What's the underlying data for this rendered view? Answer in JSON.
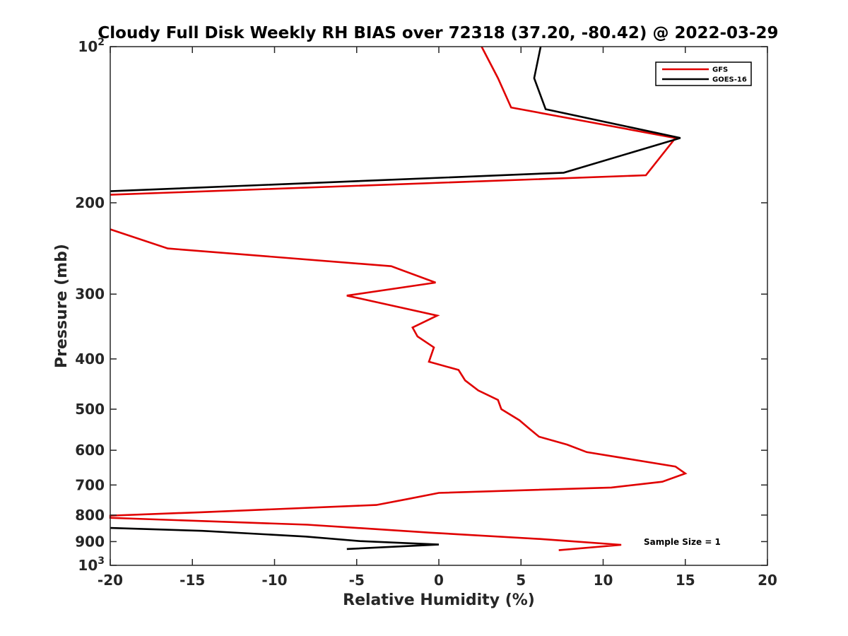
{
  "chart_data": {
    "type": "line",
    "title": "Cloudy Full Disk Weekly RH BIAS over 72318 (37.20, -80.42) @ 2022-03-29",
    "xlabel": "Relative Humidity (%)",
    "ylabel": "Pressure (mb)",
    "xlim": [
      -20,
      20
    ],
    "ylim": [
      100,
      1000
    ],
    "yscale": "log",
    "yreversed": true,
    "xticks": [
      -20,
      -15,
      -10,
      -5,
      0,
      5,
      10,
      15,
      20
    ],
    "xtick_labels": [
      "-20",
      "-15",
      "-10",
      "-5",
      "0",
      "5",
      "10",
      "15",
      "20"
    ],
    "yticks": [
      {
        "value": 100,
        "base": "10",
        "exp": "2"
      },
      {
        "value": 200,
        "base": "200",
        "exp": ""
      },
      {
        "value": 300,
        "base": "300",
        "exp": ""
      },
      {
        "value": 400,
        "base": "400",
        "exp": ""
      },
      {
        "value": 500,
        "base": "500",
        "exp": ""
      },
      {
        "value": 600,
        "base": "600",
        "exp": ""
      },
      {
        "value": 700,
        "base": "700",
        "exp": ""
      },
      {
        "value": 800,
        "base": "800",
        "exp": ""
      },
      {
        "value": 900,
        "base": "900",
        "exp": ""
      },
      {
        "value": 1000,
        "base": "10",
        "exp": "3"
      }
    ],
    "legend_position": "top-right",
    "annotation": "Sample Size = 1",
    "series": [
      {
        "name": "GFS",
        "color": "#e00000",
        "segments": [
          [
            [
              2.6,
              100
            ],
            [
              3.6,
              115
            ],
            [
              4.4,
              131
            ],
            [
              14.4,
              150
            ],
            [
              12.6,
              177
            ],
            [
              -20,
              193
            ]
          ],
          [
            [
              -20,
              225
            ],
            [
              -16.5,
              245
            ],
            [
              -2.9,
              265
            ],
            [
              -0.2,
              285
            ],
            [
              -5.6,
              302
            ],
            [
              -0.1,
              330
            ],
            [
              -1.6,
              348
            ],
            [
              -1.3,
              362
            ],
            [
              -0.3,
              380
            ],
            [
              -0.6,
              405
            ],
            [
              1.2,
              420
            ],
            [
              1.6,
              440
            ],
            [
              2.4,
              460
            ],
            [
              3.6,
              480
            ],
            [
              3.8,
              500
            ],
            [
              4.9,
              525
            ],
            [
              5.5,
              545
            ],
            [
              6.1,
              565
            ],
            [
              7.8,
              585
            ],
            [
              9.0,
              605
            ],
            [
              14.4,
              645
            ],
            [
              15.0,
              665
            ],
            [
              13.6,
              690
            ],
            [
              10.5,
              708
            ],
            [
              0,
              725
            ],
            [
              -1.9,
              745
            ],
            [
              -3.8,
              765
            ],
            [
              -14.5,
              790
            ],
            [
              -20,
              802
            ],
            [
              -20,
              810
            ],
            [
              -8.0,
              835
            ],
            [
              -0.5,
              865
            ],
            [
              6.3,
              890
            ],
            [
              11.1,
              913
            ],
            [
              7.3,
              935
            ]
          ]
        ]
      },
      {
        "name": "GOES-16",
        "color": "#000000",
        "segments": [
          [
            [
              6.2,
              100
            ],
            [
              5.8,
              115
            ],
            [
              6.5,
              132
            ],
            [
              14.7,
              150
            ],
            [
              7.6,
              175
            ],
            [
              -20,
              190
            ]
          ],
          [
            [
              -20,
              847
            ],
            [
              -14.4,
              858
            ],
            [
              -8.1,
              880
            ],
            [
              -4.8,
              898
            ],
            [
              0,
              912
            ],
            [
              -5.6,
              930
            ]
          ]
        ]
      }
    ]
  }
}
